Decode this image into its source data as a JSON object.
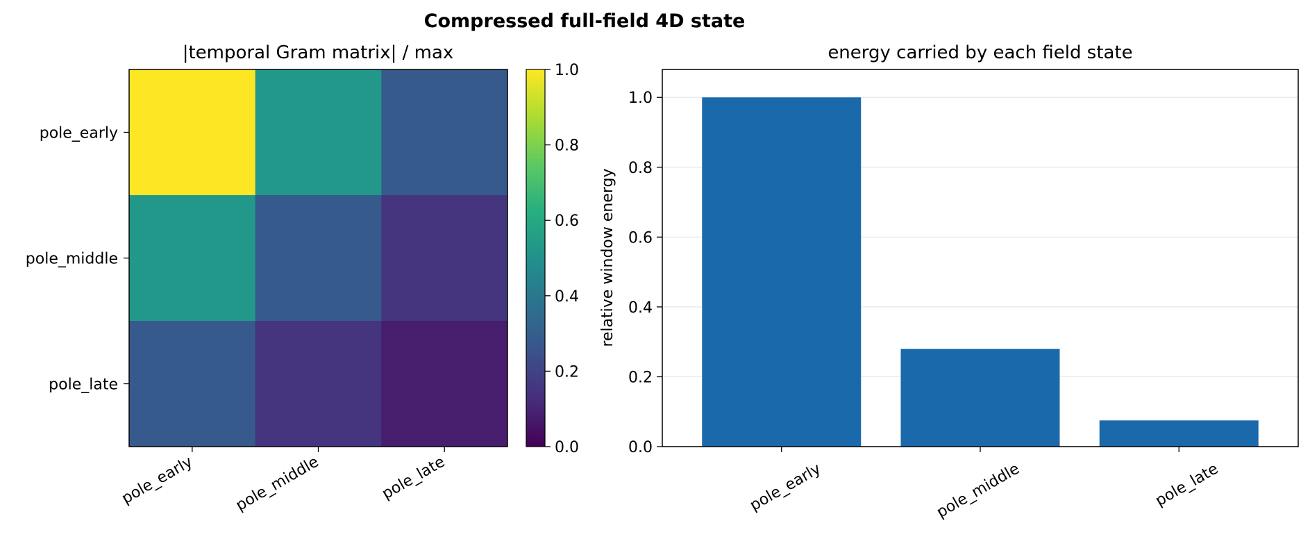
{
  "figure": {
    "suptitle": "Compressed full-field 4D state"
  },
  "chart_data": [
    {
      "type": "heatmap",
      "title": "|temporal Gram matrix| / max",
      "x_categories": [
        "pole_early",
        "pole_middle",
        "pole_late"
      ],
      "y_categories": [
        "pole_early",
        "pole_middle",
        "pole_late"
      ],
      "values": [
        [
          1.0,
          0.53,
          0.28
        ],
        [
          0.53,
          0.28,
          0.15
        ],
        [
          0.28,
          0.15,
          0.08
        ]
      ],
      "colormap": "viridis",
      "colorbar": {
        "range": [
          0.0,
          1.0
        ],
        "ticks": [
          "0.0",
          "0.2",
          "0.4",
          "0.6",
          "0.8",
          "1.0"
        ]
      }
    },
    {
      "type": "bar",
      "title": "energy carried by each field state",
      "categories": [
        "pole_early",
        "pole_middle",
        "pole_late"
      ],
      "values": [
        1.0,
        0.28,
        0.075
      ],
      "ylabel": "relative window energy",
      "xlabel": "",
      "ylim": [
        0,
        1.08
      ],
      "yticks": [
        "0.0",
        "0.2",
        "0.4",
        "0.6",
        "0.8",
        "1.0"
      ],
      "grid": "y",
      "bar_color": "#1a69ab"
    }
  ]
}
